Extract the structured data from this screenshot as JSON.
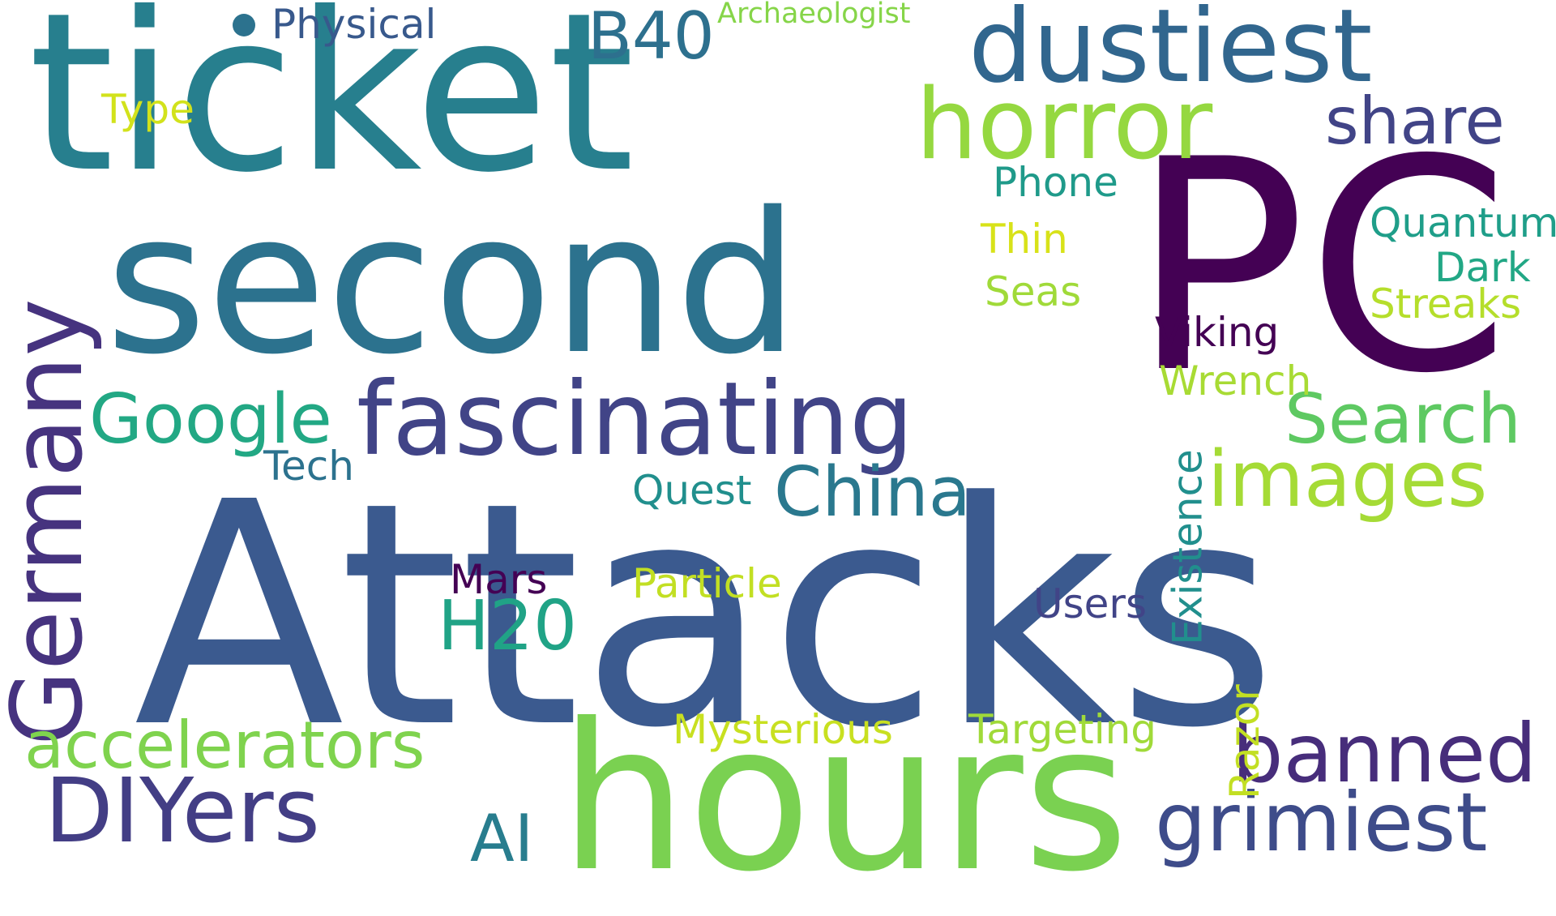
{
  "cloud": {
    "background": "#ffffff",
    "words": {
      "ticket": {
        "text": "ticket",
        "color": "#277f8e"
      },
      "second": {
        "text": "second",
        "color": "#2c728e"
      },
      "pc": {
        "text": "PC",
        "color": "#440154"
      },
      "attacks": {
        "text": "Attacks",
        "color": "#3b5a8f"
      },
      "hours": {
        "text": "hours",
        "color": "#7ad151"
      },
      "dustiest": {
        "text": "dustiest",
        "color": "#31668e"
      },
      "horror": {
        "text": "horror",
        "color": "#95d840"
      },
      "fascinating": {
        "text": "fascinating",
        "color": "#414487"
      },
      "germany": {
        "text": "Germany",
        "color": "#46337f"
      },
      "banned": {
        "text": "banned",
        "color": "#472d7b"
      },
      "grimiest": {
        "text": "grimiest",
        "color": "#3e4c8a"
      },
      "diyers": {
        "text": "DIYers",
        "color": "#433e85"
      },
      "accelerators": {
        "text": "accelerators",
        "color": "#7fd34e"
      },
      "images": {
        "text": "images",
        "color": "#a5db36"
      },
      "search": {
        "text": "Search",
        "color": "#5ec962"
      },
      "china": {
        "text": "China",
        "color": "#2a788e"
      },
      "google": {
        "text": "Google",
        "color": "#22a884"
      },
      "h20": {
        "text": "H20",
        "color": "#20a386"
      },
      "b40": {
        "text": "B40",
        "color": "#2d708e"
      },
      "share": {
        "text": "share",
        "color": "#414487"
      },
      "ai": {
        "text": "AI",
        "color": "#287d8e"
      },
      "physical": {
        "text": "Physical",
        "color": "#38598c"
      },
      "archaeologist": {
        "text": "Archaeologist",
        "color": "#86d549"
      },
      "type": {
        "text": "Type",
        "color": "#d2e21b"
      },
      "phone": {
        "text": "Phone",
        "color": "#1f9a8a"
      },
      "thin": {
        "text": "Thin",
        "color": "#d8e219"
      },
      "seas": {
        "text": "Seas",
        "color": "#a0da39"
      },
      "quantum": {
        "text": "Quantum",
        "color": "#1f9e89"
      },
      "dark": {
        "text": "Dark",
        "color": "#22a785"
      },
      "streaks": {
        "text": "Streaks",
        "color": "#b5de2b"
      },
      "viking": {
        "text": "Viking",
        "color": "#440154"
      },
      "wrench": {
        "text": "Wrench",
        "color": "#a8db34"
      },
      "tech": {
        "text": "Tech",
        "color": "#2c728e"
      },
      "quest": {
        "text": "Quest",
        "color": "#218f8d"
      },
      "mars": {
        "text": "Mars",
        "color": "#440154"
      },
      "particle": {
        "text": "Particle",
        "color": "#c2df23"
      },
      "users": {
        "text": "Users",
        "color": "#414487"
      },
      "mysterious": {
        "text": "Mysterious",
        "color": "#c8e020"
      },
      "targeting": {
        "text": "Targeting",
        "color": "#a0da39"
      },
      "existence": {
        "text": "Existence",
        "color": "#218f8d"
      },
      "razor": {
        "text": "Razor",
        "color": "#c2df23"
      }
    },
    "dot_color": "#2c728e"
  }
}
